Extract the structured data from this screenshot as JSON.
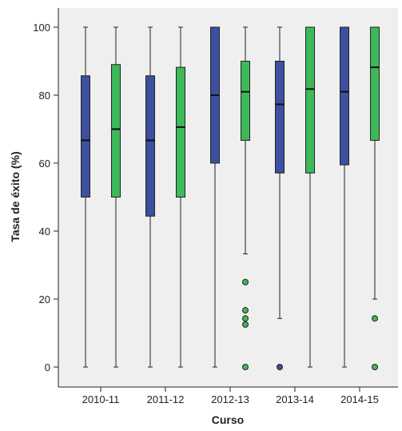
{
  "chart_data": {
    "type": "boxplot",
    "title": "",
    "xlabel": "Curso",
    "ylabel": "Tasa de éxito (%)",
    "ylim": [
      0,
      100
    ],
    "yticks": [
      0,
      20,
      40,
      60,
      80,
      100
    ],
    "categories": [
      "2010-11",
      "2011-12",
      "2012-13",
      "2013-14",
      "2014-15"
    ],
    "grid": false,
    "legend": "none",
    "colors": {
      "background": "#efefef",
      "series1": "#3c4fa0",
      "series2": "#3db85a",
      "line": "#222222"
    },
    "series": [
      {
        "color": "#3c4fa0",
        "boxes": [
          {
            "min": 0,
            "q1": 50,
            "median": 66.7,
            "q3": 85.7,
            "max": 100,
            "outliers": []
          },
          {
            "min": 0,
            "q1": 44.4,
            "median": 66.7,
            "q3": 85.7,
            "max": 100,
            "outliers": []
          },
          {
            "min": 0,
            "q1": 60,
            "median": 80,
            "q3": 100,
            "max": 100,
            "outliers": []
          },
          {
            "min": 14.3,
            "q1": 57.1,
            "median": 77.3,
            "q3": 90,
            "max": 100,
            "outliers": [
              0
            ]
          },
          {
            "min": 0,
            "q1": 59.5,
            "median": 81,
            "q3": 100,
            "max": 100,
            "outliers": []
          }
        ]
      },
      {
        "color": "#3db85a",
        "boxes": [
          {
            "min": 0,
            "q1": 50,
            "median": 70,
            "q3": 89,
            "max": 100,
            "outliers": []
          },
          {
            "min": 0,
            "q1": 50,
            "median": 70.6,
            "q3": 88.2,
            "max": 100,
            "outliers": []
          },
          {
            "min": 33.3,
            "q1": 66.7,
            "median": 81,
            "q3": 90,
            "max": 100,
            "outliers": [
              25,
              16.7,
              14.3,
              12.5,
              0
            ]
          },
          {
            "min": 0,
            "q1": 57.1,
            "median": 81.8,
            "q3": 100,
            "max": 100,
            "outliers": []
          },
          {
            "min": 20,
            "q1": 66.7,
            "median": 88.2,
            "q3": 100,
            "max": 100,
            "outliers": [
              14.3,
              0
            ]
          }
        ]
      }
    ]
  }
}
